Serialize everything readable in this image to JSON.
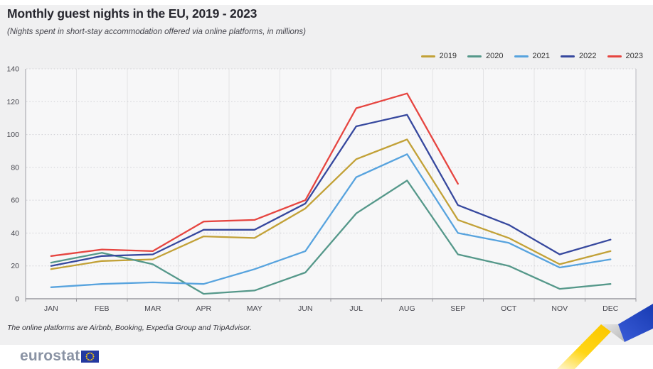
{
  "header": {
    "title": "Monthly guest nights in the EU, 2019 - 2023",
    "subtitle": "(Nights spent in short-stay accommodation offered via online platforms, in millions)"
  },
  "chart_data": {
    "type": "line",
    "title": "Monthly guest nights in the EU, 2019 - 2023",
    "subtitle": "(Nights spent in short-stay accommodation offered via online platforms, in millions)",
    "xlabel": "",
    "ylabel": "",
    "categories": [
      "JAN",
      "FEB",
      "MAR",
      "APR",
      "MAY",
      "JUN",
      "JUL",
      "AUG",
      "SEP",
      "OCT",
      "NOV",
      "DEC"
    ],
    "ylim": [
      0,
      140
    ],
    "yticks": [
      0,
      20,
      40,
      60,
      80,
      100,
      120,
      140
    ],
    "grid": "horizontal dotted lines every 20; vertical solid month-boundary lines",
    "legend_position": "top-right",
    "series": [
      {
        "name": "2019",
        "color": "#C2A137",
        "values": [
          18,
          23,
          24,
          38,
          37,
          55,
          85,
          97,
          48,
          37,
          21,
          29
        ]
      },
      {
        "name": "2020",
        "color": "#55988A",
        "values": [
          22,
          28,
          21,
          3,
          5,
          16,
          52,
          72,
          27,
          20,
          6,
          9
        ]
      },
      {
        "name": "2021",
        "color": "#57A3DE",
        "values": [
          7,
          9,
          10,
          9,
          18,
          29,
          74,
          88,
          40,
          34,
          19,
          24
        ]
      },
      {
        "name": "2022",
        "color": "#36489E",
        "values": [
          20,
          26,
          27,
          42,
          42,
          58,
          105,
          112,
          57,
          45,
          27,
          36
        ]
      },
      {
        "name": "2023",
        "color": "#E64540",
        "values": [
          26,
          30,
          29,
          47,
          48,
          60,
          116,
          125,
          70
        ]
      }
    ]
  },
  "footnote": {
    "text": "The online platforms are Airbnb, Booking, Expedia Group and TripAdvisor."
  },
  "branding": {
    "logo_text": "eurostat"
  },
  "colors": {
    "background": "#f0f0f1",
    "plot_background": "#f7f7f8",
    "axis": "#9a9aa0",
    "gridline_vertical": "#e3e3e5",
    "gridline_horizontal": "#cfcfd4",
    "eu_flag_blue": "#2339A0",
    "eu_star_yellow": "#FFCC00",
    "ribbon_yellow": "#FFD617",
    "ribbon_blue": "#2749C8"
  }
}
